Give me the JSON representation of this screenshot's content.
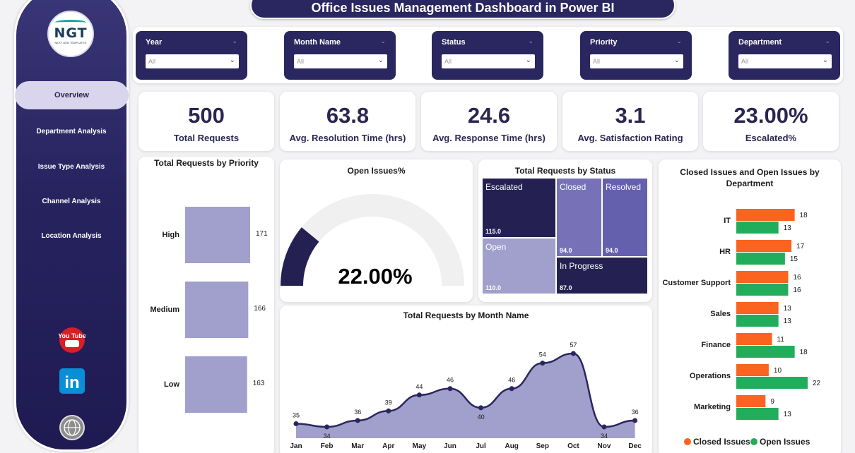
{
  "title": "Office Issues Management Dashboard in Power BI",
  "logo": {
    "text": "NGT",
    "subtext": "NEXT GEN TEMPLATES"
  },
  "nav": [
    {
      "label": "Overview",
      "active": true
    },
    {
      "label": "Department Analysis"
    },
    {
      "label": "Issue Type Analysis"
    },
    {
      "label": "Channel Analysis"
    },
    {
      "label": "Location Analysis"
    }
  ],
  "social": {
    "youtube": "You Tube",
    "linkedin": "in"
  },
  "filters": [
    {
      "label": "Year",
      "value": "All"
    },
    {
      "label": "Month Name",
      "value": "All"
    },
    {
      "label": "Status",
      "value": "All"
    },
    {
      "label": "Priority",
      "value": "All"
    },
    {
      "label": "Department",
      "value": "All"
    }
  ],
  "kpis": [
    {
      "value": "500",
      "label": "Total Requests"
    },
    {
      "value": "63.8",
      "label": "Avg. Resolution Time (hrs)"
    },
    {
      "value": "24.6",
      "label": "Avg. Response Time (hrs)"
    },
    {
      "value": "3.1",
      "label": "Avg. Satisfaction Rating"
    },
    {
      "value": "23.00%",
      "label": "Escalated%"
    }
  ],
  "colors": {
    "navy": "#2a2660",
    "lavender": "#a19fcb",
    "orange": "#fa6320",
    "green": "#22ad5c"
  },
  "chart_data": [
    {
      "type": "bar",
      "title": "Total Requests by Priority",
      "categories": [
        "High",
        "Medium",
        "Low"
      ],
      "values": [
        171,
        166,
        163
      ]
    },
    {
      "type": "gauge",
      "title": "Open Issues%",
      "value": 22.0,
      "label": "22.00%"
    },
    {
      "type": "treemap",
      "title": "Total Requests by Status",
      "items": [
        {
          "name": "Escalated",
          "value": 115.0,
          "label": "115.0"
        },
        {
          "name": "Closed",
          "value": 94.0,
          "label": "94.0"
        },
        {
          "name": "Resolved",
          "value": 94.0,
          "label": "94.0"
        },
        {
          "name": "Open",
          "value": 110.0,
          "label": "110.0"
        },
        {
          "name": "In Progress",
          "value": 87.0,
          "label": "87.0"
        }
      ]
    },
    {
      "type": "area",
      "title": "Total Requests by Month Name",
      "categories": [
        "Jan",
        "Feb",
        "Mar",
        "Apr",
        "May",
        "Jun",
        "Jul",
        "Aug",
        "Sep",
        "Oct",
        "Nov",
        "Dec"
      ],
      "values": [
        35,
        34,
        36,
        39,
        44,
        46,
        40,
        46,
        54,
        57,
        34,
        36
      ]
    },
    {
      "type": "bar",
      "title": "Closed Issues and Open Issues by Department",
      "categories": [
        "IT",
        "HR",
        "Customer Support",
        "Sales",
        "Finance",
        "Operations",
        "Marketing"
      ],
      "series": [
        {
          "name": "Closed Issues",
          "values": [
            18,
            17,
            16,
            13,
            11,
            10,
            9
          ]
        },
        {
          "name": "Open Issues",
          "values": [
            13,
            15,
            16,
            13,
            18,
            22,
            13
          ]
        }
      ],
      "legend": "bottom"
    }
  ]
}
